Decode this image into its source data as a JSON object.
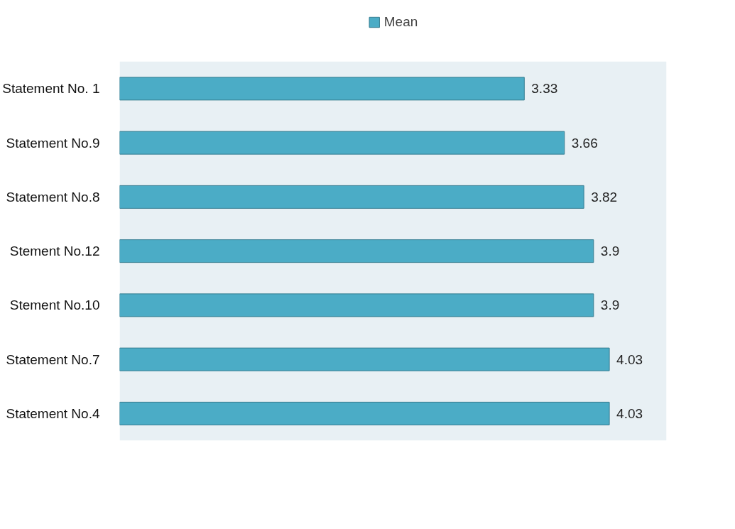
{
  "chart_data": {
    "type": "bar",
    "orientation": "horizontal",
    "categories": [
      "Statement No. 1",
      "Statement No.9",
      "Statement No.8",
      "Stement No.12",
      "Stement No.10",
      "Statement No.7",
      "Statement No.4"
    ],
    "series": [
      {
        "name": "Mean",
        "color": "#4bacc6",
        "values": [
          3.33,
          3.66,
          3.82,
          3.9,
          3.9,
          4.03,
          4.03
        ]
      }
    ],
    "xlim": [
      0,
      4.5
    ],
    "data_labels": true,
    "legend": "top",
    "grid": false,
    "tick_labels": "y"
  }
}
